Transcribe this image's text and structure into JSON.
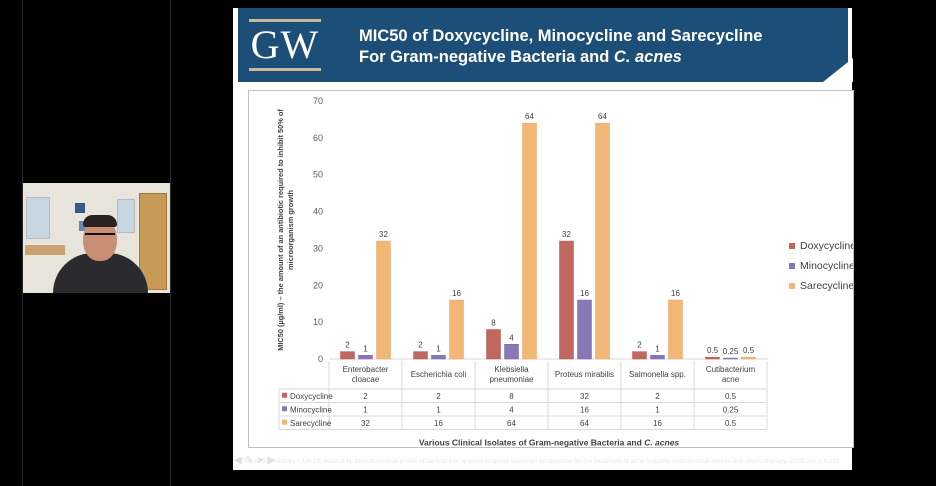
{
  "slide": {
    "logo_text": "GW",
    "title_line1": "MIC50 of Doxycycline, Minocycline and Sarecycline",
    "title_line2_prefix": "For Gram-negative Bacteria and ",
    "title_line2_italic": "C. acnes",
    "banner_color": "#1d4e77"
  },
  "citation": {
    "text": "Zhanel G, Critchley I, Lin LY, Alvandi N. Microbiological profile of sarecycline, a novel targeted spectrum tetracycline for the treatment of acne vulgaris. Antimicrobial agents and chemotherapy. 2018 Jan 1;62(1)."
  },
  "nav_icons": [
    "prev-arrow-icon",
    "pen-icon",
    "pointer-icon",
    "next-arrow-icon"
  ],
  "chart_data": {
    "type": "bar",
    "title": "",
    "ylabel": "MIC50 (µg/ml) – the amount of an antibiotic required to inhibit 50% of microorganism growth",
    "xlabel_prefix": "Various Clinical Isolates of Gram-negative Bacteria and ",
    "xlabel_italic": "C. acnes",
    "ylim": [
      0,
      70
    ],
    "yticks": [
      0,
      10,
      20,
      30,
      40,
      50,
      60,
      70
    ],
    "categories": [
      [
        "Enterobacter",
        "cloacae"
      ],
      [
        "Escherichia coli"
      ],
      [
        "Klebsiella",
        "pneumoniae"
      ],
      [
        "Proteus mirabilis"
      ],
      [
        "Salmonella spp."
      ],
      [
        "Cutibacterium",
        "acne"
      ]
    ],
    "series": [
      {
        "name": "Doxycycline",
        "color": "#c0675f",
        "values": [
          2,
          2,
          8,
          32,
          2,
          0.5
        ],
        "labels": [
          "2",
          "2",
          "8",
          "32",
          "2",
          "0.5"
        ]
      },
      {
        "name": "Minocycline",
        "color": "#8879b5",
        "values": [
          1,
          1,
          4,
          16,
          1,
          0.25
        ],
        "labels": [
          "1",
          "1",
          "4",
          "16",
          "1",
          "0.25"
        ]
      },
      {
        "name": "Sarecycline",
        "color": "#f2b677",
        "values": [
          32,
          16,
          64,
          64,
          16,
          0.5
        ],
        "labels": [
          "32",
          "16",
          "64",
          "64",
          "16",
          "0.5"
        ]
      }
    ],
    "legend_position": "right",
    "grid": false
  }
}
